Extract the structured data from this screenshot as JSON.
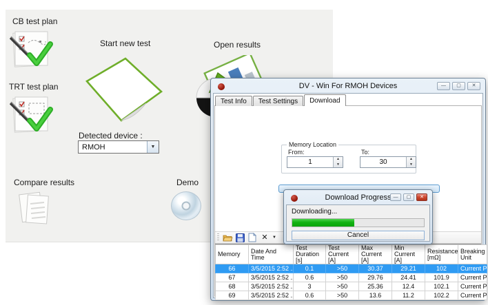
{
  "launcher": {
    "cb_label": "CB test plan",
    "trt_label": "TRT test plan",
    "start_label": "Start new test",
    "open_label": "Open results",
    "compare_label": "Compare results",
    "demo_label": "Demo",
    "detected_device_label": "Detected device :",
    "device_value": "RMOH"
  },
  "main_window": {
    "title": "DV - Win For RMOH Devices",
    "caption_buttons": {
      "minimize": "—",
      "maximize": "▢",
      "close": "✕"
    },
    "tabs": [
      {
        "label": "Test Info"
      },
      {
        "label": "Test Settings"
      },
      {
        "label": "Download"
      }
    ],
    "memory_location": {
      "legend": "Memory Location",
      "from_label": "From:",
      "from_value": "1",
      "to_label": "To:",
      "to_value": "30"
    }
  },
  "progress_dialog": {
    "title": "Download Progress",
    "status": "Downloading...",
    "progress_percent": 47,
    "cancel_label": "Cancel",
    "caption_buttons": {
      "minimize": "—",
      "maximize": "▢",
      "close": "✕"
    }
  },
  "toolbar": {
    "icons": [
      "open-folder",
      "save",
      "new-document",
      "delete-x",
      "dropdown-arrow"
    ]
  },
  "table": {
    "columns": [
      {
        "l1": "Memory",
        "l2": ""
      },
      {
        "l1": "Date And",
        "l2": "Time"
      },
      {
        "l1": "Test",
        "l2": "Duration [s]"
      },
      {
        "l1": "Test Current",
        "l2": "[A]"
      },
      {
        "l1": "Max Current",
        "l2": "[A]"
      },
      {
        "l1": "Min Current",
        "l2": "[A]"
      },
      {
        "l1": "Resistance",
        "l2": "[mΩ]"
      },
      {
        "l1": "Breaking",
        "l2": "Unit"
      }
    ],
    "rows": [
      {
        "selected": true,
        "cells": [
          "66",
          "3/5/2015 2:52 ...",
          "0.1",
          ">50",
          "30.37",
          "29.21",
          "102",
          "Current Path - A"
        ]
      },
      {
        "selected": false,
        "cells": [
          "67",
          "3/5/2015 2:52 ...",
          "0.6",
          ">50",
          "29.76",
          "24.41",
          "101.9",
          "Current Path - A"
        ]
      },
      {
        "selected": false,
        "cells": [
          "68",
          "3/5/2015 2:52 ...",
          "3",
          ">50",
          "25.36",
          "12.4",
          "102.1",
          "Current Path - A"
        ]
      },
      {
        "selected": false,
        "cells": [
          "69",
          "3/5/2015 2:52 ...",
          "0.6",
          ">50",
          "13.6",
          "11.2",
          "102.2",
          "Current Path - A"
        ]
      }
    ]
  },
  "colors": {
    "selection_blue": "#2f9bf3",
    "progress_green": "#12b212",
    "close_red": "#cf4a33",
    "app_dot_red": "#8e1307",
    "panel_gray": "#f1f1ef"
  }
}
